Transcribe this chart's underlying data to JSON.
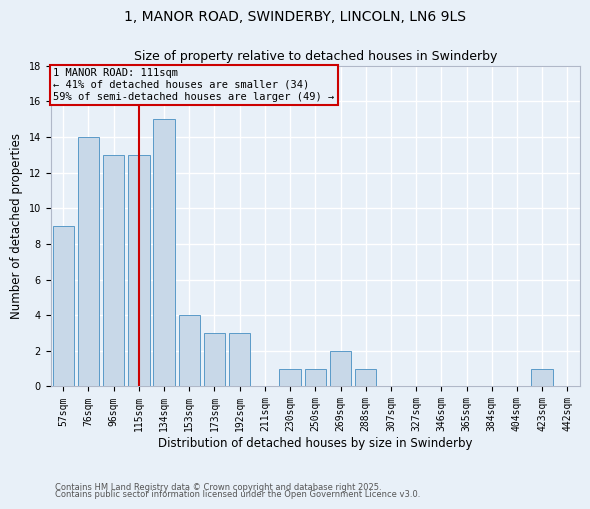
{
  "title": "1, MANOR ROAD, SWINDERBY, LINCOLN, LN6 9LS",
  "subtitle": "Size of property relative to detached houses in Swinderby",
  "xlabel": "Distribution of detached houses by size in Swinderby",
  "ylabel": "Number of detached properties",
  "categories": [
    "57sqm",
    "76sqm",
    "96sqm",
    "115sqm",
    "134sqm",
    "153sqm",
    "173sqm",
    "192sqm",
    "211sqm",
    "230sqm",
    "250sqm",
    "269sqm",
    "288sqm",
    "307sqm",
    "327sqm",
    "346sqm",
    "365sqm",
    "384sqm",
    "404sqm",
    "423sqm",
    "442sqm"
  ],
  "values": [
    9,
    14,
    13,
    13,
    15,
    4,
    3,
    3,
    0,
    1,
    1,
    2,
    1,
    0,
    0,
    0,
    0,
    0,
    0,
    1,
    0
  ],
  "bar_color": "#c8d8e8",
  "bar_edgecolor": "#5a9ac8",
  "bg_color": "#e8f0f8",
  "grid_color": "#ffffff",
  "vline_x": 3.0,
  "vline_color": "#cc0000",
  "annotation_text": "1 MANOR ROAD: 111sqm\n← 41% of detached houses are smaller (34)\n59% of semi-detached houses are larger (49) →",
  "annotation_box_color": "#cc0000",
  "ylim": [
    0,
    18
  ],
  "yticks": [
    0,
    2,
    4,
    6,
    8,
    10,
    12,
    14,
    16,
    18
  ],
  "footer_line1": "Contains HM Land Registry data © Crown copyright and database right 2025.",
  "footer_line2": "Contains public sector information licensed under the Open Government Licence v3.0.",
  "title_fontsize": 10,
  "subtitle_fontsize": 9,
  "axis_fontsize": 8.5,
  "tick_fontsize": 7,
  "annot_fontsize": 7.5,
  "footer_fontsize": 6
}
